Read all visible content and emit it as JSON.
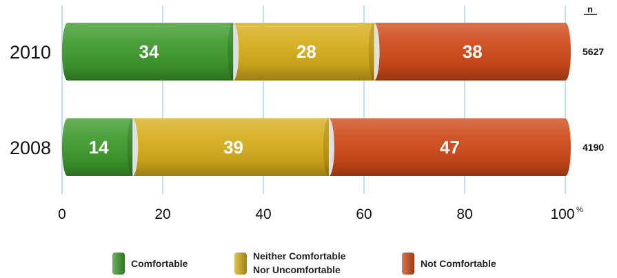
{
  "chart_data": {
    "type": "bar",
    "orientation": "horizontal",
    "stacked": true,
    "categories": [
      "2010",
      "2008"
    ],
    "series": [
      {
        "name": "Comfortable",
        "values": [
          34,
          14
        ],
        "color": "#3f9a2e"
      },
      {
        "name": "Neither Comfortable Nor Uncomfortable",
        "legend_lines": [
          "Neither Comfortable",
          "Nor Uncomfortable"
        ],
        "values": [
          28,
          39
        ],
        "color": "#d6ad1c"
      },
      {
        "name": "Not Comfortable",
        "values": [
          38,
          47
        ],
        "color": "#cf4a1a"
      }
    ],
    "n_header": "n",
    "n_values": [
      "5627",
      "4190"
    ],
    "xlim": [
      0,
      100
    ],
    "x_ticks": [
      "0",
      "20",
      "40",
      "60",
      "80",
      "100"
    ],
    "x_unit": "%",
    "grid": true,
    "legend_position": "bottom"
  }
}
